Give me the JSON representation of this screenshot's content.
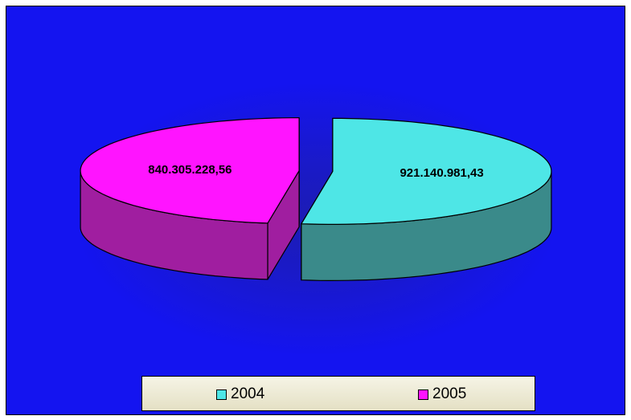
{
  "chart_data": {
    "type": "pie",
    "three_d": true,
    "exploded": true,
    "slices": [
      {
        "label": "2004",
        "value": 921140981.43,
        "display": "921.140.981,43",
        "color": "#4ee6e6",
        "side_color": "#3a8a8a"
      },
      {
        "label": "2005",
        "value": 840305228.56,
        "display": "840.305.228,56",
        "color": "#ff14ff",
        "side_color": "#a01ea0"
      }
    ],
    "legend": {
      "position": "bottom",
      "entries": [
        "2004",
        "2005"
      ]
    },
    "background_color": "#1414f0"
  }
}
